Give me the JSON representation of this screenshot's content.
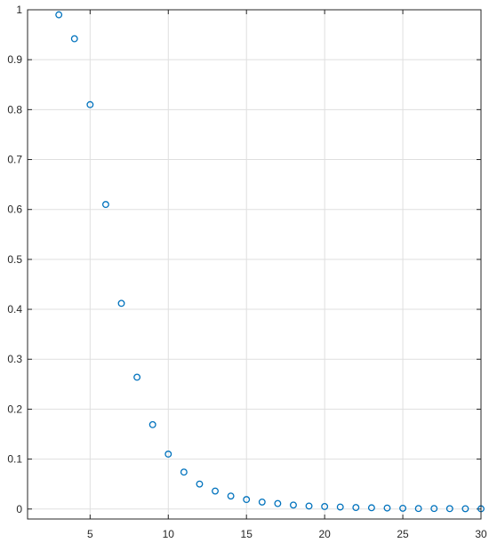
{
  "chart_data": {
    "type": "scatter",
    "title": "",
    "xlabel": "",
    "ylabel": "",
    "xlim": [
      1,
      30
    ],
    "ylim": [
      -0.02,
      1
    ],
    "grid": true,
    "xticks": [
      5,
      10,
      15,
      20,
      25,
      30
    ],
    "yticks": [
      0,
      0.1,
      0.2,
      0.3,
      0.4,
      0.5,
      0.6,
      0.7,
      0.8,
      0.9,
      1
    ],
    "xtick_labels": [
      "5",
      "10",
      "15",
      "20",
      "25",
      "30"
    ],
    "ytick_labels": [
      "0",
      "0.1",
      "0.2",
      "0.3",
      "0.4",
      "0.5",
      "0.6",
      "0.7",
      "0.8",
      "0.9",
      "1"
    ],
    "marker": "circle-open",
    "colors": {
      "series": "#0072BD",
      "grid": "#dfdfdf",
      "axis": "#262626"
    },
    "series": [
      {
        "x": [
          3,
          4,
          5,
          6,
          7,
          8,
          9,
          10,
          11,
          12,
          13,
          14,
          15,
          16,
          17,
          18,
          19,
          20,
          21,
          22,
          23,
          24,
          25,
          26,
          27,
          28,
          29,
          30
        ],
        "values": [
          0.99,
          0.942,
          0.81,
          0.61,
          0.412,
          0.264,
          0.169,
          0.11,
          0.074,
          0.05,
          0.036,
          0.026,
          0.019,
          0.014,
          0.011,
          0.008,
          0.006,
          0.005,
          0.004,
          0.003,
          0.0025,
          0.002,
          0.0015,
          0.001,
          0.001,
          0.0008,
          0.0006,
          0.0005
        ]
      }
    ]
  }
}
